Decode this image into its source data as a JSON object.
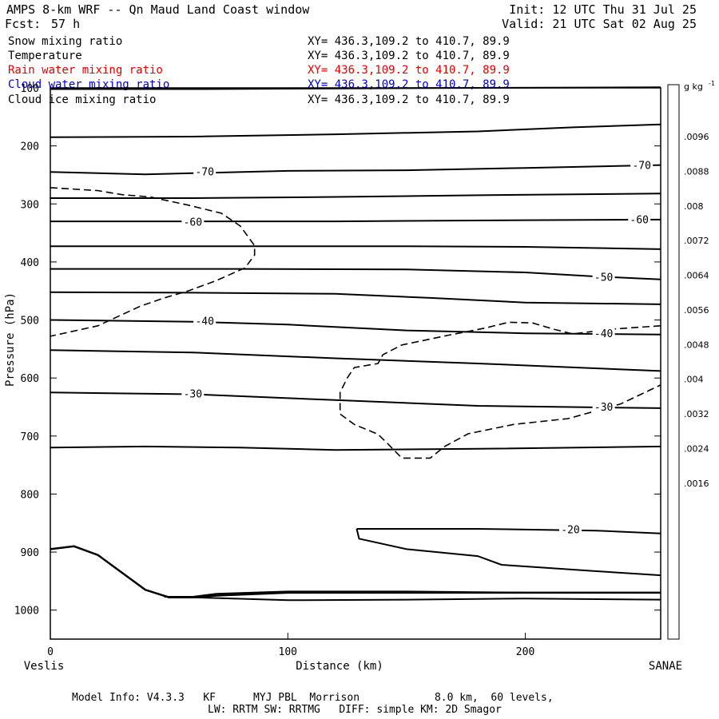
{
  "header": {
    "title": "AMPS 8-km WRF -- Qn Maud Land Coast window",
    "fcst_label": "Fcst:",
    "fcst_value": "57 h",
    "init": "Init: 12 UTC Thu 31 Jul 25",
    "valid": "Valid: 21 UTC Sat 02 Aug 25"
  },
  "fields": [
    {
      "name": "Snow mixing ratio",
      "xy": "XY= 436.3,109.2 to 410.7, 89.9",
      "color": "#000000"
    },
    {
      "name": "Temperature",
      "xy": "XY= 436.3,109.2 to 410.7, 89.9",
      "color": "#000000"
    },
    {
      "name": "Rain water mixing ratio",
      "xy": "XY= 436.3,109.2 to 410.7, 89.9",
      "color": "#e00000"
    },
    {
      "name": "Cloud water mixing ratio",
      "xy": "XY= 436.3,109.2 to 410.7, 89.9",
      "color": "#0000cc"
    },
    {
      "name": "Cloud ice mixing ratio",
      "xy": "XY= 436.3,109.2 to 410.7, 89.9",
      "color": "#000000"
    }
  ],
  "footer": {
    "line1": "Model Info: V4.3.3   KF      MYJ PBL  Morrison            8.0 km,  60 levels,",
    "line2": "LW: RRTM SW: RRTMG   DIFF: simple KM: 2D Smagor"
  },
  "chart_data": {
    "type": "line",
    "xlabel": "Distance (km)",
    "ylabel": "Pressure (hPa)",
    "xlim": [
      0,
      257
    ],
    "ylim": [
      100,
      1050
    ],
    "y_inverted": true,
    "x_ticks": [
      0,
      100,
      200
    ],
    "y_ticks": [
      100,
      200,
      300,
      400,
      500,
      600,
      700,
      800,
      900,
      1000
    ],
    "x_start_label": "Veslis",
    "x_end_label": "SANAE",
    "colorbar": {
      "unit_label": "g kg",
      "unit_exp": "-1",
      "ticks": [
        ".0096",
        ".0088",
        ".008",
        ".0072",
        ".0064",
        ".0056",
        ".0048",
        ".004",
        ".0032",
        ".0024",
        ".0016"
      ],
      "colors": [
        "#3a3a3a",
        "#474747",
        "#555555",
        "#636363",
        "#717171",
        "#7f7f7f",
        "#8e8e8e",
        "#9d9d9d",
        "#ababab",
        "#bababa",
        "#c9c9c9",
        "#d7d7d7",
        "#e5e5e5",
        "#f1f1f1",
        "#fbfbfb",
        "#ffffff"
      ]
    },
    "isotherms": [
      {
        "points": [
          [
            0,
            102
          ],
          [
            60,
            102
          ],
          [
            120,
            101
          ],
          [
            180,
            100
          ],
          [
            257,
            99
          ]
        ]
      },
      {
        "points": [
          [
            0,
            185
          ],
          [
            60,
            184
          ],
          [
            120,
            180
          ],
          [
            180,
            175
          ],
          [
            220,
            168
          ],
          [
            257,
            163
          ]
        ]
      },
      {
        "points": [
          [
            0,
            245
          ],
          [
            40,
            249
          ],
          [
            60,
            247
          ],
          [
            100,
            243
          ],
          [
            150,
            242
          ],
          [
            200,
            238
          ],
          [
            257,
            233
          ]
        ]
      },
      {
        "points": [
          [
            0,
            290
          ],
          [
            60,
            290
          ],
          [
            120,
            288
          ],
          [
            180,
            285
          ],
          [
            257,
            282
          ]
        ]
      },
      {
        "points": [
          [
            0,
            330
          ],
          [
            60,
            330
          ],
          [
            120,
            330
          ],
          [
            200,
            328
          ],
          [
            257,
            327
          ]
        ]
      },
      {
        "points": [
          [
            0,
            373
          ],
          [
            80,
            373
          ],
          [
            150,
            373
          ],
          [
            200,
            374
          ],
          [
            257,
            378
          ]
        ]
      },
      {
        "points": [
          [
            0,
            412
          ],
          [
            80,
            412
          ],
          [
            150,
            413
          ],
          [
            200,
            418
          ],
          [
            230,
            425
          ],
          [
            257,
            430
          ]
        ]
      },
      {
        "points": [
          [
            0,
            452
          ],
          [
            60,
            453
          ],
          [
            120,
            455
          ],
          [
            160,
            462
          ],
          [
            200,
            470
          ],
          [
            257,
            473
          ]
        ]
      },
      {
        "points": [
          [
            0,
            500
          ],
          [
            60,
            503
          ],
          [
            100,
            508
          ],
          [
            150,
            518
          ],
          [
            200,
            523
          ],
          [
            257,
            525
          ]
        ]
      },
      {
        "points": [
          [
            0,
            552
          ],
          [
            60,
            556
          ],
          [
            120,
            566
          ],
          [
            180,
            575
          ],
          [
            257,
            588
          ]
        ]
      },
      {
        "points": [
          [
            0,
            625
          ],
          [
            60,
            628
          ],
          [
            120,
            638
          ],
          [
            180,
            648
          ],
          [
            257,
            652
          ]
        ]
      },
      {
        "points": [
          [
            0,
            720
          ],
          [
            40,
            718
          ],
          [
            80,
            720
          ],
          [
            120,
            724
          ],
          [
            180,
            722
          ],
          [
            257,
            718
          ]
        ]
      },
      {
        "points": [
          [
            129,
            860
          ],
          [
            140,
            860
          ],
          [
            180,
            860
          ],
          [
            230,
            863
          ],
          [
            257,
            868
          ]
        ]
      },
      {
        "points": [
          [
            129,
            860
          ],
          [
            130,
            877
          ],
          [
            150,
            895
          ],
          [
            180,
            907
          ],
          [
            190,
            922
          ],
          [
            230,
            933
          ],
          [
            257,
            940
          ]
        ]
      },
      {
        "points": [
          [
            48,
            977
          ],
          [
            60,
            977
          ],
          [
            70,
            972
          ],
          [
            100,
            968
          ],
          [
            150,
            968
          ],
          [
            200,
            970
          ],
          [
            257,
            970
          ]
        ]
      },
      {
        "points": [
          [
            60,
            978
          ],
          [
            100,
            983
          ],
          [
            150,
            982
          ],
          [
            200,
            980
          ],
          [
            257,
            982
          ]
        ]
      }
    ],
    "isotherm_labels": [
      {
        "text": "-70",
        "x": 65,
        "p": 245
      },
      {
        "text": "-70",
        "x": 249,
        "p": 234
      },
      {
        "text": "-60",
        "x": 60,
        "p": 332
      },
      {
        "text": "-60",
        "x": 248,
        "p": 328
      },
      {
        "text": "-50",
        "x": 233,
        "p": 427
      },
      {
        "text": "-40",
        "x": 65,
        "p": 503
      },
      {
        "text": "-40",
        "x": 233,
        "p": 524
      },
      {
        "text": "-30",
        "x": 60,
        "p": 628
      },
      {
        "text": "-30",
        "x": 233,
        "p": 651
      },
      {
        "text": "-20",
        "x": 219,
        "p": 862
      }
    ],
    "cloud_contours": [
      {
        "points": [
          [
            0,
            272
          ],
          [
            20,
            277
          ],
          [
            30,
            284
          ],
          [
            42,
            288
          ],
          [
            58,
            302
          ],
          [
            72,
            316
          ],
          [
            80,
            338
          ],
          [
            86,
            372
          ],
          [
            86,
            388
          ],
          [
            82,
            410
          ],
          [
            70,
            432
          ],
          [
            58,
            450
          ],
          [
            48,
            462
          ],
          [
            38,
            476
          ],
          [
            20,
            510
          ],
          [
            0,
            528
          ]
        ]
      },
      {
        "points": [
          [
            257,
            510
          ],
          [
            236,
            516
          ],
          [
            220,
            524
          ],
          [
            212,
            516
          ],
          [
            203,
            505
          ],
          [
            193,
            504
          ],
          [
            183,
            514
          ],
          [
            168,
            526
          ],
          [
            148,
            543
          ],
          [
            140,
            560
          ],
          [
            138,
            575
          ],
          [
            128,
            582
          ],
          [
            125,
            600
          ],
          [
            122,
            625
          ],
          [
            122,
            662
          ],
          [
            128,
            680
          ],
          [
            138,
            697
          ],
          [
            142,
            713
          ],
          [
            148,
            738
          ],
          [
            160,
            738
          ],
          [
            166,
            718
          ],
          [
            176,
            696
          ],
          [
            195,
            680
          ],
          [
            218,
            670
          ],
          [
            240,
            645
          ],
          [
            257,
            612
          ]
        ]
      }
    ],
    "terrain": [
      [
        0,
        895
      ],
      [
        10,
        890
      ],
      [
        20,
        905
      ],
      [
        30,
        935
      ],
      [
        40,
        965
      ],
      [
        50,
        978
      ],
      [
        60,
        978
      ],
      [
        70,
        975
      ],
      [
        100,
        970
      ],
      [
        150,
        970
      ],
      [
        200,
        970
      ],
      [
        257,
        970
      ]
    ]
  }
}
